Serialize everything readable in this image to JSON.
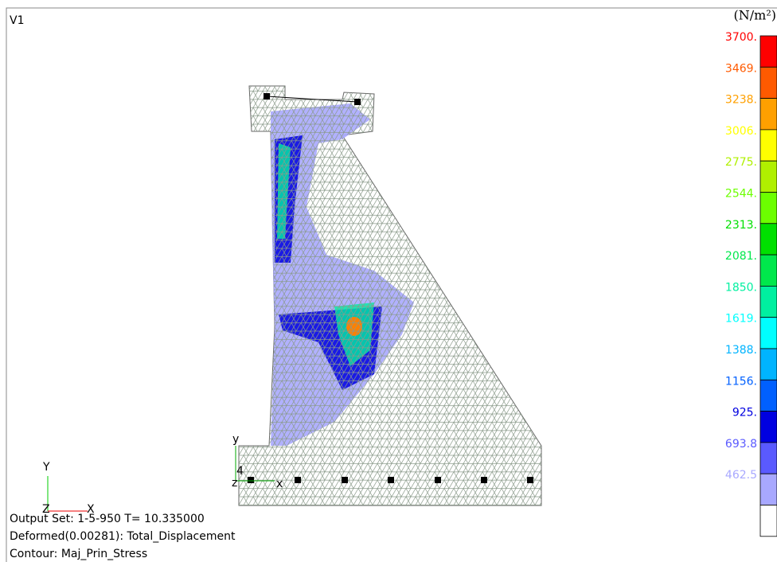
{
  "viewport_label": "V1",
  "legend": {
    "unit": "(N/m²)",
    "labels": [
      "3700.",
      "3469.",
      "3238.",
      "3006.",
      "2775.",
      "2544.",
      "2313.",
      "2081.",
      "1850.",
      "1619.",
      "1388.",
      "1156.",
      "925.",
      "693.8",
      "462.5"
    ],
    "colors": [
      "#ff0000",
      "#ff5a00",
      "#ffa000",
      "#ffff00",
      "#b0f000",
      "#6cff00",
      "#00e000",
      "#00e84c",
      "#00f0a0",
      "#00ffff",
      "#00b4ff",
      "#0060ff",
      "#0000e0",
      "#5a5aff",
      "#a8a8ff",
      "#ffffff"
    ]
  },
  "view_triad": {
    "y": "Y",
    "z": "Z",
    "x": "X"
  },
  "model_triad": {
    "y": "y",
    "x": "x",
    "z": "z",
    "node": "4"
  },
  "info": {
    "lines": [
      "Output Set: 1-5-950 T= 10.335000",
      "Deformed(0.00281): Total_Displacement",
      "Contour: Maj_Prin_Stress"
    ]
  }
}
